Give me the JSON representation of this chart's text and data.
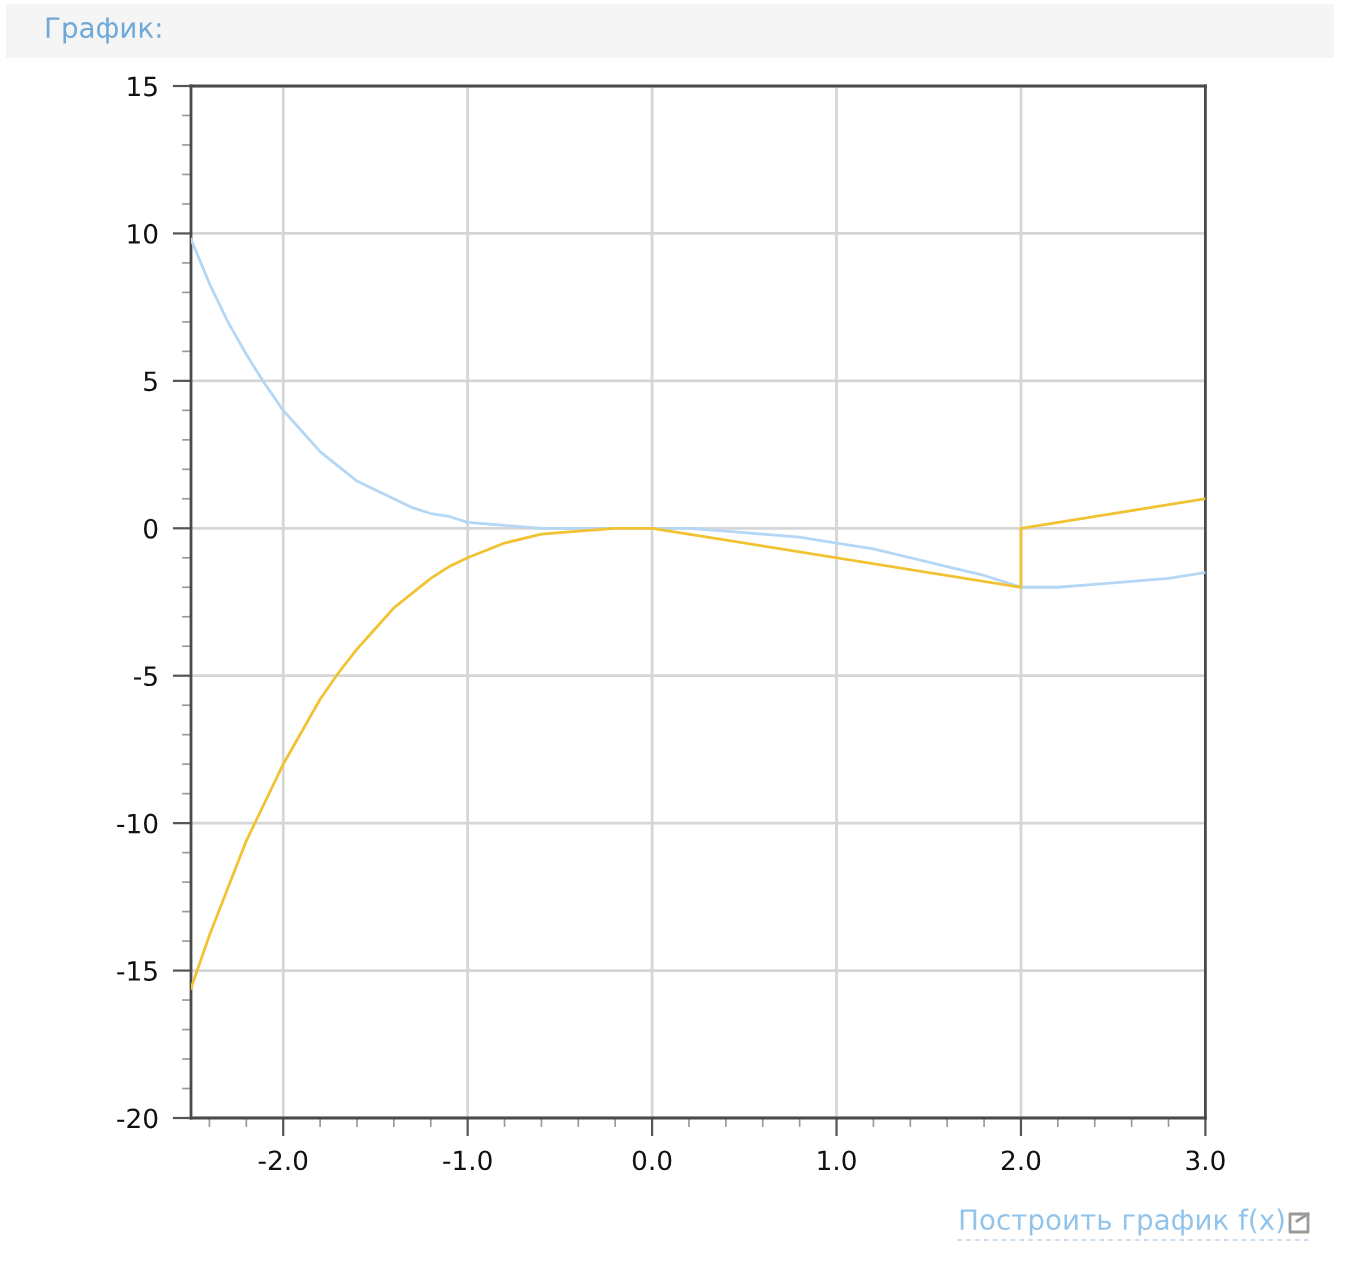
{
  "chart_data": {
    "type": "line",
    "title": "График:",
    "annotations": [
      "Построить график f(x)"
    ],
    "series": [
      {
        "color": "#b3d7f5",
        "x": [
          -2.5,
          -2.4,
          -2.3,
          -2.2,
          -2.1,
          -2.0,
          -1.9,
          -1.8,
          -1.7,
          -1.6,
          -1.5,
          -1.4,
          -1.3,
          -1.2,
          -1.1,
          -1.0,
          -0.8,
          -0.6,
          -0.4,
          -0.2,
          0.0,
          0.2,
          0.4,
          0.6,
          0.8,
          1.0,
          1.2,
          1.4,
          1.6,
          1.8,
          2.0,
          2.2,
          2.4,
          2.6,
          2.8,
          3.0
        ],
        "values": [
          9.8,
          8.3,
          7.0,
          5.9,
          4.9,
          4.0,
          3.3,
          2.6,
          2.1,
          1.6,
          1.3,
          1.0,
          0.7,
          0.5,
          0.4,
          0.2,
          0.1,
          0.0,
          0.0,
          0.0,
          0.0,
          0.0,
          -0.1,
          -0.2,
          -0.3,
          -0.5,
          -0.7,
          -1.0,
          -1.3,
          -1.6,
          -2.0,
          -2.0,
          -1.9,
          -1.8,
          -1.7,
          -1.5
        ]
      },
      {
        "color": "#f1c232",
        "x": [
          -2.5,
          -2.4,
          -2.3,
          -2.2,
          -2.1,
          -2.0,
          -1.9,
          -1.8,
          -1.7,
          -1.6,
          -1.5,
          -1.4,
          -1.3,
          -1.2,
          -1.1,
          -1.0,
          -0.8,
          -0.6,
          -0.4,
          -0.2,
          0.0,
          2.0,
          2.0,
          3.0
        ],
        "values": [
          -15.6,
          -13.8,
          -12.2,
          -10.6,
          -9.3,
          -8.0,
          -6.9,
          -5.8,
          -4.9,
          -4.1,
          -3.4,
          -2.7,
          -2.2,
          -1.7,
          -1.3,
          -1.0,
          -0.5,
          -0.2,
          -0.1,
          0.0,
          0.0,
          -2.0,
          0.0,
          1.0
        ]
      }
    ],
    "xlim": [
      -2.5,
      3.0
    ],
    "xticks": [
      {
        "value": -2.4,
        "label": null
      },
      {
        "value": -2.2,
        "label": null
      },
      {
        "value": -2.0,
        "label": "-2.0"
      },
      {
        "value": -1.8,
        "label": null
      },
      {
        "value": -1.6,
        "label": null
      },
      {
        "value": -1.4,
        "label": null
      },
      {
        "value": -1.2,
        "label": null
      },
      {
        "value": -1.0,
        "label": "-1.0"
      },
      {
        "value": -0.8,
        "label": null
      },
      {
        "value": -0.6,
        "label": null
      },
      {
        "value": -0.4,
        "label": null
      },
      {
        "value": -0.2,
        "label": null
      },
      {
        "value": 0.0,
        "label": "0.0"
      },
      {
        "value": 0.2,
        "label": null
      },
      {
        "value": 0.4,
        "label": null
      },
      {
        "value": 0.6,
        "label": null
      },
      {
        "value": 0.8,
        "label": null
      },
      {
        "value": 1.0,
        "label": "1.0"
      },
      {
        "value": 1.2,
        "label": null
      },
      {
        "value": 1.4,
        "label": null
      },
      {
        "value": 1.6,
        "label": null
      },
      {
        "value": 1.8,
        "label": null
      },
      {
        "value": 2.0,
        "label": "2.0"
      },
      {
        "value": 2.2,
        "label": null
      },
      {
        "value": 2.4,
        "label": null
      },
      {
        "value": 2.6,
        "label": null
      },
      {
        "value": 2.8,
        "label": null
      },
      {
        "value": 3.0,
        "label": "3.0"
      }
    ],
    "ylim": [
      -20,
      15
    ],
    "yticks": [
      -20,
      {
        "value": -19,
        "label": null
      },
      {
        "value": -18,
        "label": null
      },
      {
        "value": -17,
        "label": null
      },
      {
        "value": -16,
        "label": null
      },
      -15,
      {
        "value": -14,
        "label": null
      },
      {
        "value": -13,
        "label": null
      },
      {
        "value": -12,
        "label": null
      },
      {
        "value": -11,
        "label": null
      },
      -10,
      {
        "value": -9,
        "label": null
      },
      {
        "value": -8,
        "label": null
      },
      {
        "value": -7,
        "label": null
      },
      {
        "value": -6,
        "label": null
      },
      -5,
      {
        "value": -4,
        "label": null
      },
      {
        "value": -3,
        "label": null
      },
      {
        "value": -2,
        "label": null
      },
      {
        "value": -1,
        "label": null
      },
      0,
      {
        "value": 1,
        "label": null
      },
      {
        "value": 2,
        "label": null
      },
      {
        "value": 3,
        "label": null
      },
      {
        "value": 4,
        "label": null
      },
      5,
      {
        "value": 6,
        "label": null
      },
      {
        "value": 7,
        "label": null
      },
      {
        "value": 8,
        "label": null
      },
      {
        "value": 9,
        "label": null
      },
      10,
      {
        "value": 11,
        "label": null
      },
      {
        "value": 12,
        "label": null
      },
      {
        "value": 13,
        "label": null
      },
      {
        "value": 14,
        "label": null
      },
      15
    ],
    "grid": true
  }
}
